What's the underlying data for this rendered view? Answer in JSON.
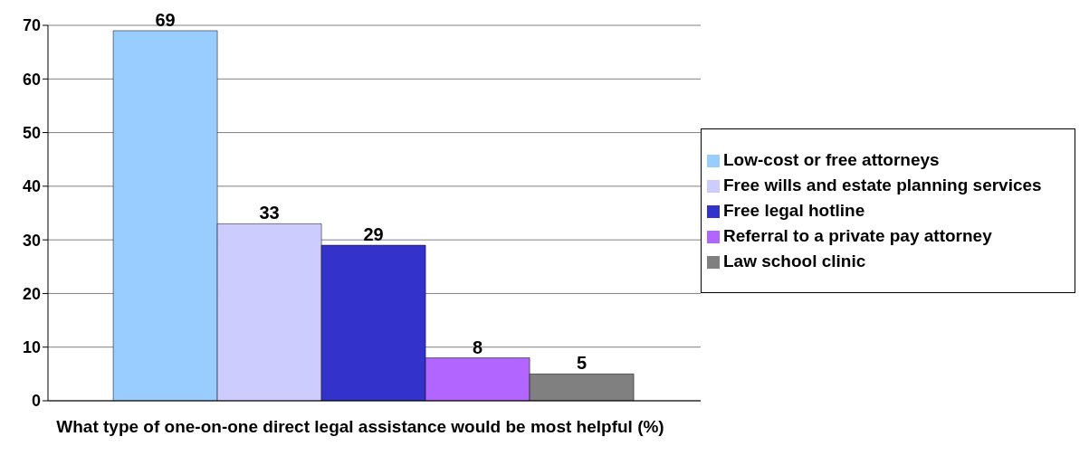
{
  "chart_data": {
    "type": "bar",
    "xlabel": "What type of one-on-one direct legal assistance would be most helpful (%)",
    "categories": [
      null
    ],
    "series": [
      {
        "name": "Low-cost or free attorneys",
        "color": "#99ccff",
        "values": [
          69
        ]
      },
      {
        "name": "Free wills and estate planning services",
        "color": "#ccccff",
        "values": [
          33
        ]
      },
      {
        "name": "Free legal hotline",
        "color": "#3333cc",
        "values": [
          29
        ]
      },
      {
        "name": "Referral to a private pay attorney",
        "color": "#b266ff",
        "values": [
          8
        ]
      },
      {
        "name": "Law school clinic",
        "color": "#808080",
        "values": [
          5
        ]
      }
    ],
    "ylim": [
      0,
      70
    ],
    "yticks": [
      0,
      10,
      20,
      30,
      40,
      50,
      60,
      70
    ],
    "grid": "y",
    "legend": "right",
    "data_labels": true
  }
}
